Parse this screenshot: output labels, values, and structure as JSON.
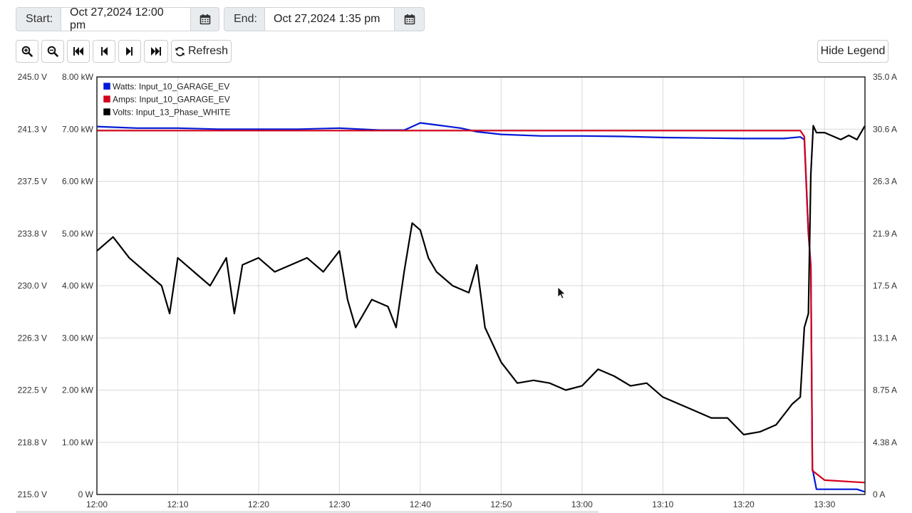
{
  "toolbar": {
    "start_label": "Start:",
    "start_value": "Oct 27,2024 12:00 pm",
    "end_label": "End:",
    "end_value": "Oct 27,2024 1:35 pm",
    "calendar_icon": "calendar-icon",
    "refresh_label": "Refresh",
    "hide_legend_label": "Hide Legend",
    "icons": [
      "zoom-in-icon",
      "zoom-out-icon",
      "fast-backward-icon",
      "step-backward-icon",
      "step-forward-icon",
      "fast-forward-icon",
      "refresh-icon"
    ]
  },
  "chart_data": {
    "type": "line",
    "x_range": [
      "12:00",
      "13:35"
    ],
    "x_ticks": [
      "12:00",
      "12:10",
      "12:20",
      "12:30",
      "12:40",
      "12:50",
      "13:00",
      "13:10",
      "13:20",
      "13:30"
    ],
    "y_left_volts_ticks": [
      "245.0 V",
      "241.3 V",
      "237.5 V",
      "233.8 V",
      "230.0 V",
      "226.3 V",
      "222.5 V",
      "218.8 V",
      "215.0 V"
    ],
    "y_left_watts_ticks": [
      "8.00 kW",
      "7.00 kW",
      "6.00 kW",
      "5.00 kW",
      "4.00 kW",
      "3.00 kW",
      "2.00 kW",
      "1.00 kW",
      "0 W"
    ],
    "y_right_amps_ticks": [
      "35.0 A",
      "30.6 A",
      "26.3 A",
      "21.9 A",
      "17.5 A",
      "13.1 A",
      "8.75 A",
      "4.38 A",
      "0 A"
    ],
    "volts_range": [
      215.0,
      245.0
    ],
    "watts_range_kw": [
      0,
      8
    ],
    "amps_range": [
      0,
      35
    ],
    "grid": true,
    "legend_position": "top-left",
    "series": [
      {
        "name": "Watts: Input_10_GARAGE_EV",
        "color": "#0019d6",
        "axis": "kW",
        "x": [
          "12:00",
          "12:05",
          "12:10",
          "12:15",
          "12:20",
          "12:25",
          "12:30",
          "12:35",
          "12:38",
          "12:40",
          "12:42",
          "12:45",
          "12:47",
          "12:50",
          "12:55",
          "13:00",
          "13:05",
          "13:10",
          "13:15",
          "13:20",
          "13:25",
          "13:27",
          "13:27.5",
          "13:28",
          "13:28.3",
          "13:28.5",
          "13:29",
          "13:30",
          "13:32",
          "13:34",
          "13:35"
        ],
        "values": [
          7.05,
          7.02,
          7.02,
          7.0,
          7.0,
          7.0,
          7.02,
          6.98,
          6.98,
          7.12,
          7.08,
          7.02,
          6.95,
          6.9,
          6.87,
          6.87,
          6.86,
          6.84,
          6.83,
          6.82,
          6.82,
          6.85,
          6.8,
          5.0,
          4.4,
          0.5,
          0.1,
          0.1,
          0.1,
          0.1,
          0.05
        ]
      },
      {
        "name": "Amps: Input_10_GARAGE_EV",
        "color": "#d4001a",
        "axis": "A",
        "x": [
          "12:00",
          "12:10",
          "12:20",
          "12:30",
          "12:40",
          "12:50",
          "13:00",
          "13:10",
          "13:20",
          "13:27",
          "13:27.5",
          "13:28",
          "13:28.3",
          "13:28.5",
          "13:30",
          "13:35"
        ],
        "values": [
          30.5,
          30.5,
          30.5,
          30.5,
          30.5,
          30.5,
          30.5,
          30.5,
          30.5,
          30.5,
          30.0,
          22.0,
          19.0,
          2.0,
          1.2,
          1.0
        ]
      },
      {
        "name": "Volts: Input_13_Phase_WHITE",
        "color": "#000000",
        "axis": "V",
        "x": [
          "12:00",
          "12:02",
          "12:04",
          "12:06",
          "12:08",
          "12:09",
          "12:10",
          "12:12",
          "12:14",
          "12:16",
          "12:17",
          "12:18",
          "12:20",
          "12:22",
          "12:24",
          "12:26",
          "12:28",
          "12:30",
          "12:31",
          "12:32",
          "12:33",
          "12:34",
          "12:36",
          "12:37",
          "12:38",
          "12:39",
          "12:40",
          "12:41",
          "12:42",
          "12:44",
          "12:46",
          "12:47",
          "12:48",
          "12:50",
          "12:52",
          "12:54",
          "12:56",
          "12:58",
          "13:00",
          "13:02",
          "13:04",
          "13:06",
          "13:08",
          "13:10",
          "13:12",
          "13:14",
          "13:16",
          "13:18",
          "13:20",
          "13:22",
          "13:24",
          "13:26",
          "13:27",
          "13:27.5",
          "13:28",
          "13:28.3",
          "13:28.6",
          "13:29",
          "13:30",
          "13:32",
          "13:33",
          "13:34",
          "13:35"
        ],
        "values": [
          232.5,
          233.5,
          232.0,
          231.0,
          230.0,
          228.0,
          232.0,
          231.0,
          230.0,
          232.0,
          228.0,
          231.5,
          232.0,
          231.0,
          231.5,
          232.0,
          231.0,
          232.5,
          229.0,
          227.0,
          228.0,
          229.0,
          228.5,
          227.0,
          231.0,
          234.5,
          234.0,
          232.0,
          231.0,
          230.0,
          229.5,
          231.5,
          227.0,
          224.5,
          223.0,
          223.2,
          223.0,
          222.5,
          222.8,
          224.0,
          223.5,
          222.8,
          223.0,
          222.0,
          221.5,
          221.0,
          220.5,
          220.5,
          219.3,
          219.5,
          220.0,
          221.5,
          222.0,
          227.0,
          228.0,
          238.0,
          241.5,
          241.0,
          241.0,
          240.5,
          240.8,
          240.5,
          241.5
        ]
      }
    ]
  }
}
